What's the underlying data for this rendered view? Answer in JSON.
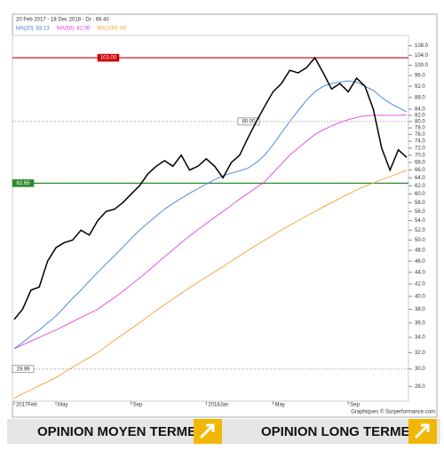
{
  "chart_data": {
    "type": "line",
    "title": "20 Feb 2017 - 18 Dec 2018 - Dr : 69.40",
    "credit": "Graphiques © Surperformance.com",
    "log_scale": true,
    "categories": [
      "2017Feb",
      null,
      null,
      null,
      null,
      "May",
      null,
      null,
      null,
      null,
      null,
      null,
      null,
      null,
      "Sep",
      null,
      null,
      null,
      null,
      null,
      null,
      null,
      null,
      "2018Jan",
      null,
      null,
      null,
      null,
      null,
      null,
      null,
      "May",
      null,
      null,
      null,
      null,
      null,
      null,
      null,
      null,
      "Sep",
      null,
      null,
      null,
      null,
      null,
      null,
      null
    ],
    "series": [
      {
        "color": "#000000",
        "values": [
          36.5,
          38,
          41,
          41.5,
          46,
          48.5,
          49.5,
          50,
          52,
          51,
          54,
          56,
          56.5,
          58,
          60,
          62,
          65,
          67,
          68.5,
          67,
          70,
          66,
          67,
          69,
          67,
          64,
          68,
          70,
          75,
          80,
          85,
          90,
          93,
          98,
          97,
          99,
          103,
          97,
          91,
          93,
          90,
          95,
          92,
          84,
          72,
          66,
          71.5,
          69.4
        ]
      },
      {
        "name": "MA(20)",
        "color": "#3d7fd9",
        "values": [
          32.5,
          33.3,
          34.2,
          35,
          36,
          37,
          38.3,
          39.7,
          41,
          42.5,
          44,
          45.5,
          47,
          48.6,
          50.3,
          52,
          53.5,
          55,
          56.5,
          57.8,
          59,
          60.2,
          61.3,
          62.4,
          63.5,
          64.5,
          65.2,
          65.8,
          66.5,
          68,
          70,
          73,
          76.5,
          80,
          83.5,
          87,
          90,
          92,
          93,
          93.5,
          94,
          93.5,
          92,
          90.5,
          88,
          86,
          84.5,
          83.13
        ]
      },
      {
        "name": "MA(50)",
        "color": "#e040e0",
        "values": [
          32.5,
          33,
          33.5,
          34,
          34.5,
          35,
          35.6,
          36.2,
          36.8,
          37.4,
          38,
          38.9,
          39.8,
          40.8,
          41.9,
          43,
          44.2,
          45.5,
          46.8,
          48.1,
          49.5,
          50.8,
          52.1,
          53.4,
          54.7,
          56,
          57.4,
          58.8,
          60.2,
          61.6,
          63,
          65.3,
          67.6,
          70,
          72,
          74,
          76,
          77.4,
          78.6,
          79.7,
          80.6,
          81.3,
          81.8,
          82,
          82,
          82,
          82,
          82.06
        ]
      },
      {
        "name": "MA(100)",
        "color": "#f5a030",
        "values": [
          26.7,
          27.2,
          27.6,
          28.1,
          28.5,
          29,
          29.6,
          30.2,
          30.8,
          31.4,
          32,
          32.8,
          33.6,
          34.4,
          35.2,
          36,
          36.9,
          37.8,
          38.7,
          39.6,
          40.5,
          41.4,
          42.3,
          43.2,
          44.1,
          45,
          46,
          47,
          48,
          49,
          50,
          51,
          52,
          53,
          54,
          55,
          56,
          57,
          58,
          59,
          60,
          61,
          61.9,
          62.7,
          63.5,
          64.3,
          65.1,
          66
        ]
      }
    ],
    "levels": [
      {
        "value": 103,
        "label": "103.00",
        "color": "#cc0000",
        "dashed": false
      },
      {
        "value": 80,
        "label": "80.00",
        "color": "#999999",
        "dashed": true
      },
      {
        "value": 62.65,
        "label": "62.65",
        "color": "#2e8b2e",
        "dashed": false
      },
      {
        "value": 29.99,
        "label": "29.99",
        "color": "#999999",
        "dashed": true
      }
    ],
    "ylim": [
      26.4,
      112.5
    ],
    "yticks": [
      {
        "value": 28,
        "label": "28.0"
      },
      {
        "value": 30,
        "label": "30.0"
      },
      {
        "value": 32,
        "label": "32.0"
      },
      {
        "value": 34,
        "label": "34.0"
      },
      {
        "value": 36,
        "label": "36.0"
      },
      {
        "value": 38,
        "label": "38.0"
      },
      {
        "value": 40,
        "label": "40.0"
      },
      {
        "value": 42,
        "label": "42.0"
      },
      {
        "value": 44,
        "label": "44.0"
      },
      {
        "value": 46,
        "label": "46.0"
      },
      {
        "value": 48,
        "label": "48.0"
      },
      {
        "value": 50,
        "label": "50.0"
      },
      {
        "value": 52,
        "label": "52.0"
      },
      {
        "value": 54,
        "label": "54.0"
      },
      {
        "value": 56,
        "label": "56.0"
      },
      {
        "value": 58,
        "label": "58.0"
      },
      {
        "value": 60,
        "label": "60.0"
      },
      {
        "value": 62,
        "label": "62.0"
      },
      {
        "value": 64,
        "label": "64.0"
      },
      {
        "value": 66,
        "label": "66.0"
      },
      {
        "value": 68,
        "label": "68.0"
      },
      {
        "value": 70,
        "label": "70.0"
      },
      {
        "value": 72,
        "label": "72.0"
      },
      {
        "value": 74,
        "label": "74.0"
      },
      {
        "value": 76,
        "label": "76.0"
      },
      {
        "value": 78,
        "label": "78.0"
      },
      {
        "value": 80,
        "label": "80.0"
      },
      {
        "value": 82,
        "label": "82.0"
      },
      {
        "value": 84,
        "label": "84.0"
      },
      {
        "value": 88,
        "label": "88.0"
      },
      {
        "value": 92,
        "label": "92.0"
      },
      {
        "value": 96,
        "label": "96.0"
      },
      {
        "value": 100,
        "label": "100.0"
      },
      {
        "value": 104,
        "label": "104.0"
      },
      {
        "value": 108,
        "label": "108.0"
      }
    ]
  },
  "opinions": [
    "OPINION MOYEN TERME",
    "OPINION LONG TERME"
  ]
}
